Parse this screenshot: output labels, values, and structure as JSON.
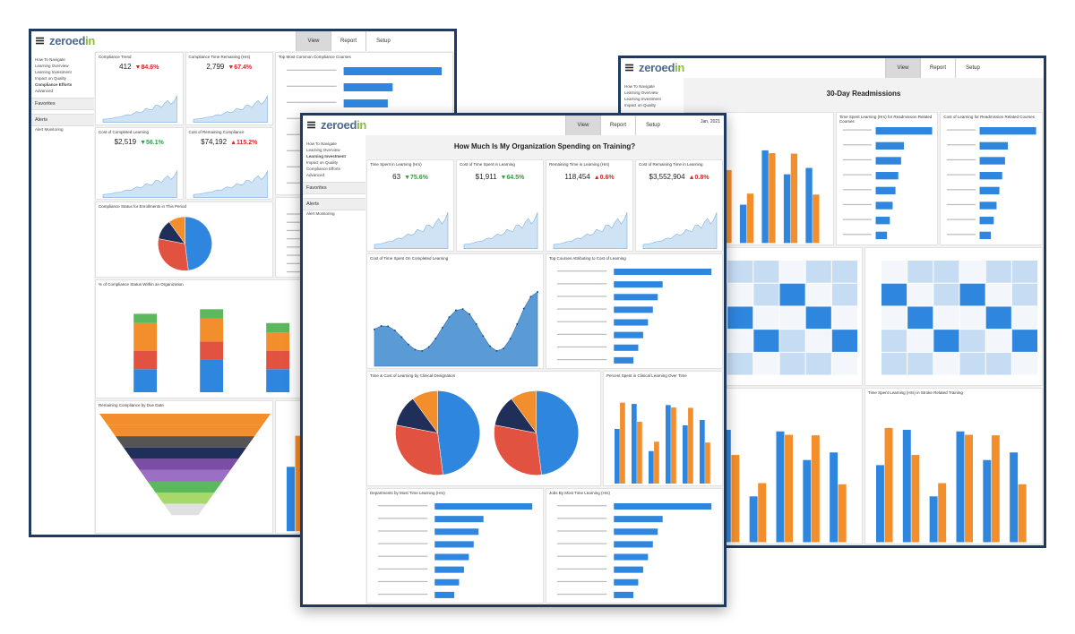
{
  "windows": [
    {
      "logo": [
        "zeroed",
        "in"
      ],
      "tabs": [
        "View",
        "Report",
        "Setup"
      ],
      "sidebar": [
        "How To Navigate",
        "Learning Overview",
        "Learning Investment",
        "Impact on Quality",
        "Compliance Efforts",
        "Advanced"
      ],
      "favorites": "Favorites",
      "alerts": "Alerts",
      "alert_items": [
        "Alert Monitoring"
      ],
      "kpis": [
        {
          "label": "Compliance Trend",
          "value": "412",
          "change": "▼84.6%",
          "color": "#d62728"
        },
        {
          "label": "Compliance Time Remaining (Hrs)",
          "value": "2,799",
          "change": "▼67.4%",
          "color": "#d62728"
        },
        {
          "label": "Cost of Completed Learning",
          "value": "$2,519",
          "change": "▼56.1%",
          "color": "#2e9e3f"
        },
        {
          "label": "Cost of Remaining Compliance",
          "value": "$74,192",
          "change": "▲115.2%",
          "color": "#d62728"
        }
      ],
      "panels": [
        "Top Most Common Compliance Courses",
        "Compliance Status for Enrollments in This Period",
        "% of Compliance Status Within an Organization",
        "Remaining Compliance by Due Date"
      ]
    },
    {
      "logo": [
        "zeroed",
        "in"
      ],
      "tabs": [
        "View",
        "Report",
        "Setup"
      ],
      "sidebar": [
        "How To Navigate",
        "Learning Overview",
        "Learning Investment",
        "Impact on Quality"
      ],
      "title": "30-Day Readmissions",
      "panels": [
        "Time Spent Learning (Hrs) for Readmission Related Courses",
        "Cost of Learning for Readmission Related Courses",
        "Time Spent Learning (Hrs) in Stroke Related Training"
      ]
    },
    {
      "logo": [
        "zeroed",
        "in"
      ],
      "tabs": [
        "View",
        "Report",
        "Setup"
      ],
      "date": "Jan, 2021",
      "sidebar": [
        "How To Navigate",
        "Learning Overview",
        "Learning Investment",
        "Impact on Quality",
        "Compliance Efforts",
        "Advanced"
      ],
      "favorites": "Favorites",
      "alerts": "Alerts",
      "alert_items": [
        "Alert Monitoring"
      ],
      "title": "How Much Is My Organization Spending on Training?",
      "kpis": [
        {
          "label": "Time Spent in Learning (Hrs)",
          "value": "63",
          "change": "▼75.6%",
          "color": "#2e9e3f"
        },
        {
          "label": "Cost of Time Spent in Learning",
          "value": "$1,911",
          "change": "▼64.5%",
          "color": "#2e9e3f"
        },
        {
          "label": "Remaining Time in Learning (Hrs)",
          "value": "118,454",
          "change": "▲0.6%",
          "color": "#d62728"
        },
        {
          "label": "Cost of Remaining Time in Learning",
          "value": "$3,552,904",
          "change": "▲0.8%",
          "color": "#d62728"
        }
      ],
      "panels": [
        "Cost of Time Spent On Completed Learning",
        "Top Courses Attributing to Cost of Learning",
        "Time & Cost of Learning by Clinical Designation",
        "Percent Spent in Clinical Learning Over Time",
        "Departments by Most Time Learning (Hrs)",
        "Jobs By Most Time Learning (Hrs)"
      ]
    }
  ]
}
